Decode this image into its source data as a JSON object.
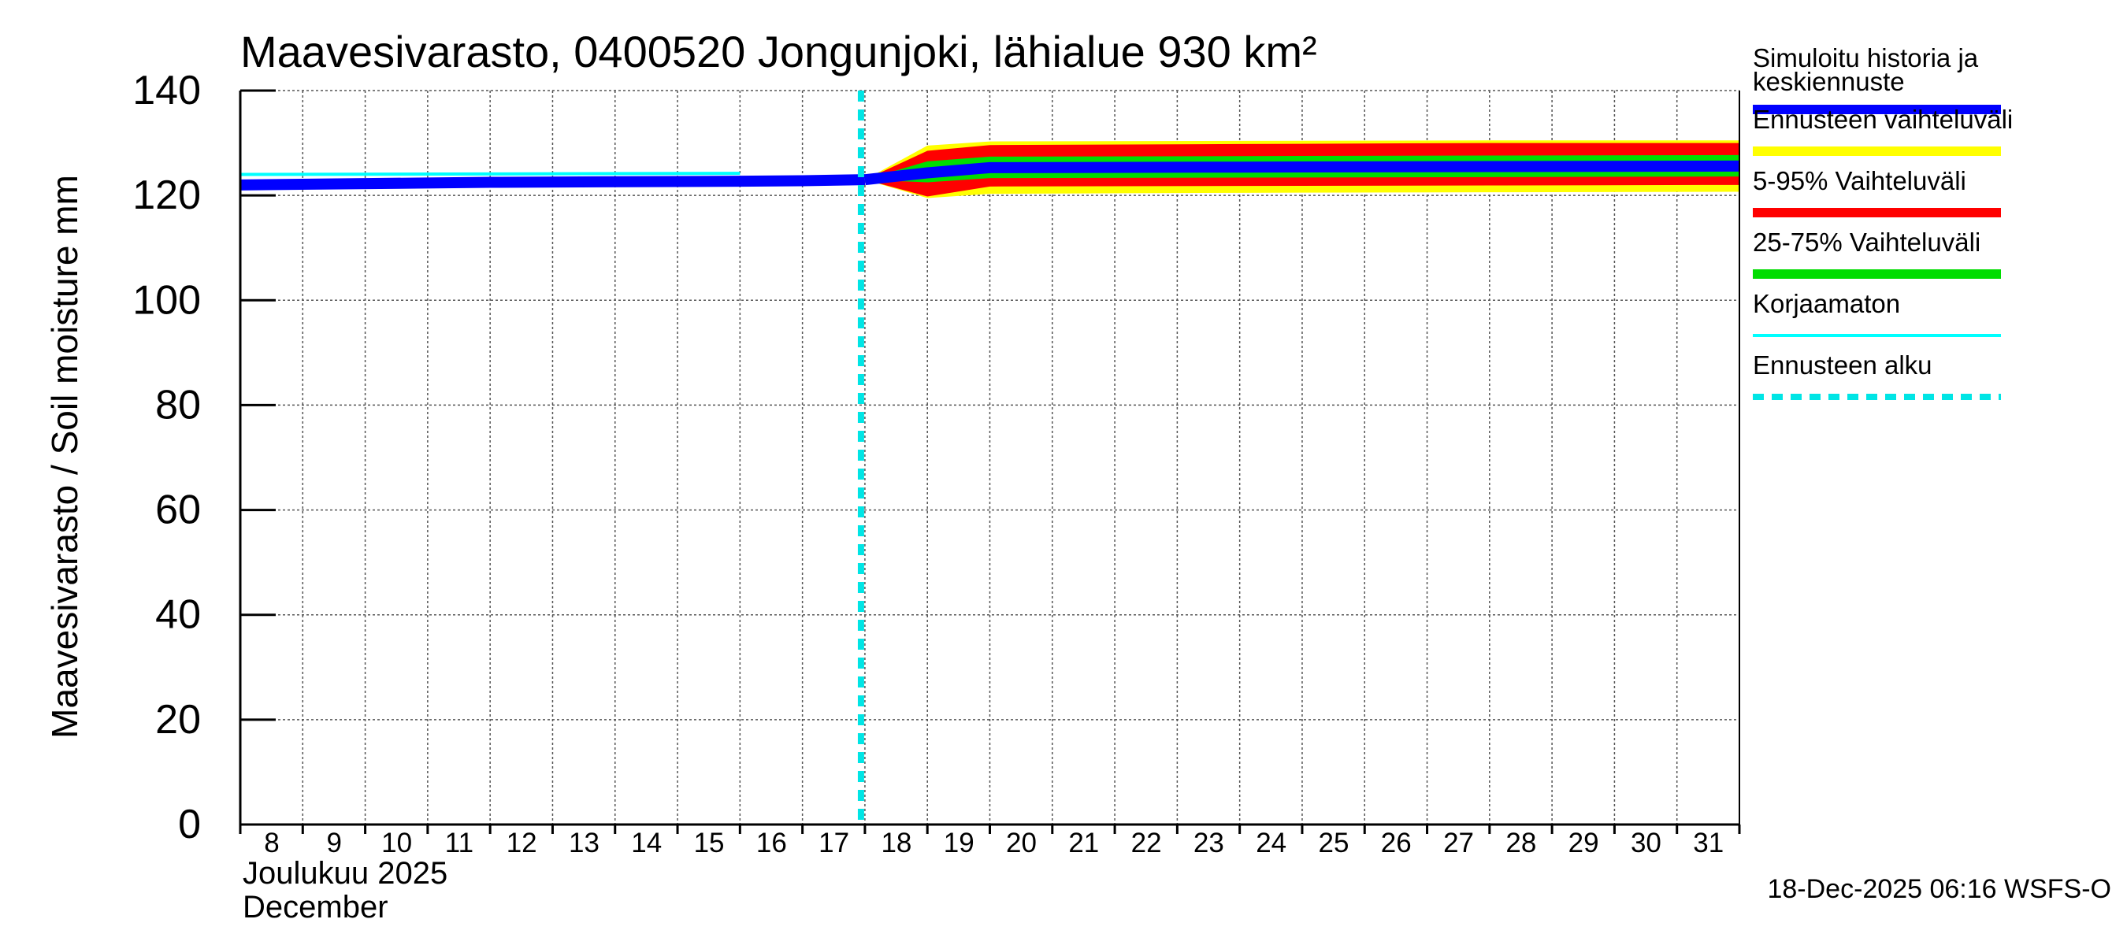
{
  "chart_data": {
    "type": "area",
    "title": "Maavesivarasto, 0400520 Jongunjoki, lähialue 930 km²",
    "ylabel": "Maavesivarasto / Soil moisture   mm",
    "xlabel_fi": "Joulukuu  2025",
    "xlabel_en": "December",
    "ylim": [
      0,
      140
    ],
    "yticks": [
      0,
      20,
      40,
      60,
      80,
      100,
      120,
      140
    ],
    "xlim": [
      8,
      32
    ],
    "xticks": [
      8,
      9,
      10,
      11,
      12,
      13,
      14,
      15,
      16,
      17,
      18,
      19,
      20,
      21,
      22,
      23,
      24,
      25,
      26,
      27,
      28,
      29,
      30,
      31
    ],
    "forecast_start": 18,
    "history": {
      "x": [
        8,
        12,
        16,
        17,
        18
      ],
      "values": [
        122,
        122.5,
        122.7,
        122.8,
        123
      ]
    },
    "uncorrected": {
      "x": [
        8,
        12,
        16
      ],
      "values": [
        124,
        124.1,
        124.2
      ]
    },
    "forecast": {
      "x": [
        18,
        19,
        20,
        24,
        28,
        32
      ],
      "range_max": [
        123,
        129.5,
        130.3,
        130.4,
        130.5,
        130.5
      ],
      "range_min": [
        123,
        119.5,
        120.3,
        120.5,
        120.6,
        120.7
      ],
      "p95": [
        123,
        128.5,
        129.6,
        129.8,
        130,
        130
      ],
      "p5": [
        123,
        119.8,
        121.7,
        121.8,
        121.9,
        122
      ],
      "p75": [
        123,
        126.5,
        127.4,
        127.5,
        127.6,
        127.7
      ],
      "p25": [
        123,
        122.5,
        123.3,
        123.4,
        123.5,
        123.6
      ],
      "median": [
        123,
        124.3,
        125.3,
        125.4,
        125.5,
        125.6
      ]
    },
    "legend": [
      {
        "label": "Simuloitu historia ja",
        "label2": "keskiennuste",
        "color": "#0000ff",
        "style": "thick"
      },
      {
        "label": "Ennusteen vaihteluväli",
        "color": "#ffff00",
        "style": "thick"
      },
      {
        "label": "5-95% Vaihteluväli",
        "color": "#ff0000",
        "style": "thick"
      },
      {
        "label": "25-75% Vaihteluväli",
        "color": "#00dd00",
        "style": "thick"
      },
      {
        "label": "Korjaamaton",
        "color": "#00ffff",
        "style": "thin"
      },
      {
        "label": "Ennusteen alku",
        "color": "#00e5e5",
        "style": "dashed"
      }
    ],
    "timestamp": "18-Dec-2025 06:16 WSFS-O"
  }
}
